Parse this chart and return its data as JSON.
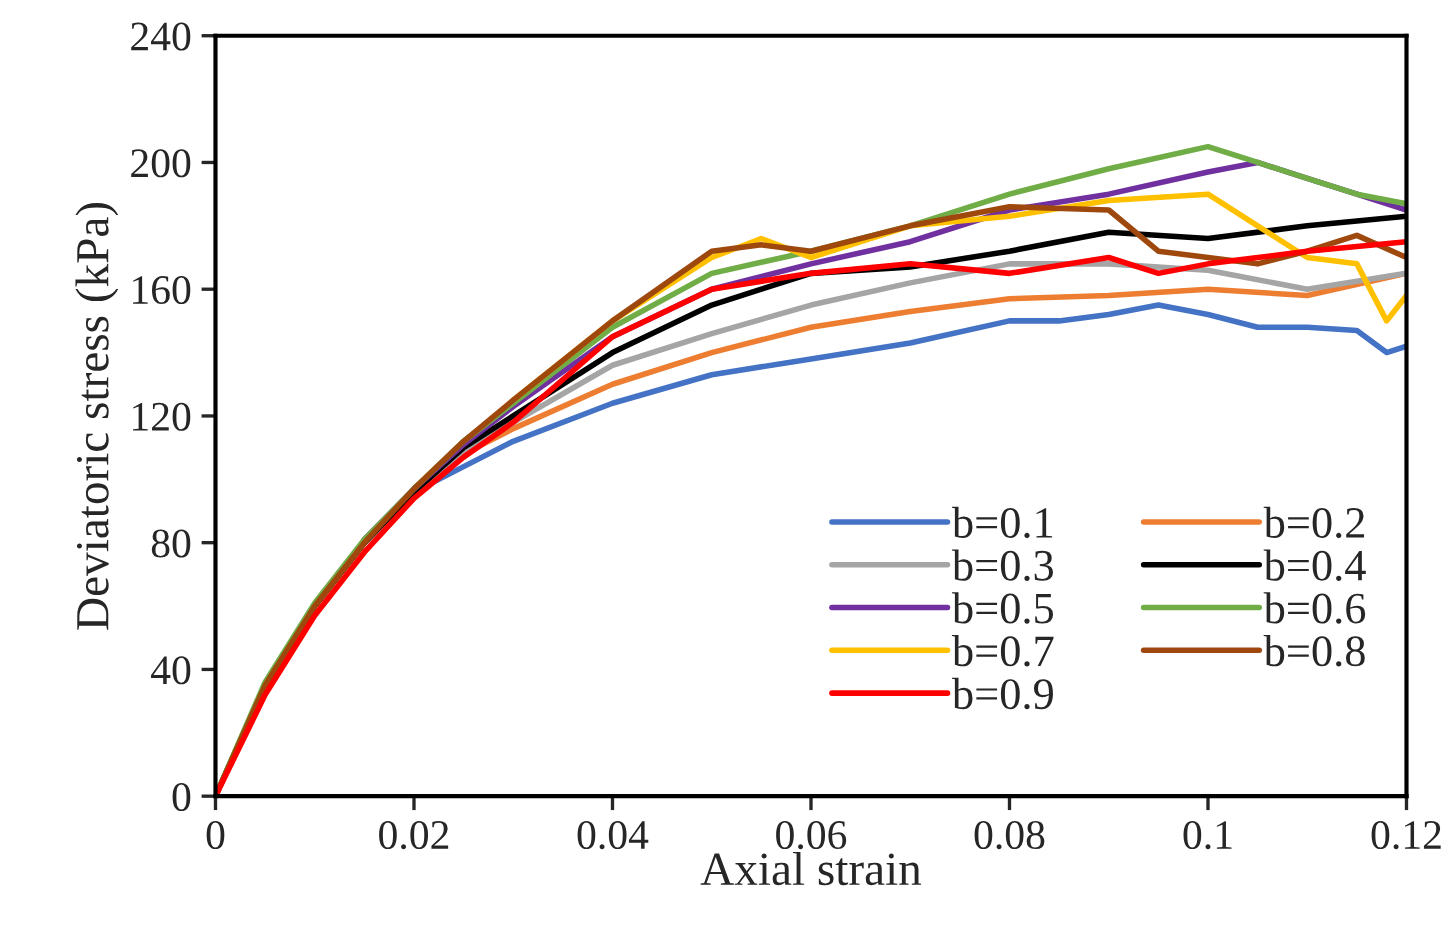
{
  "chart_data": {
    "type": "line",
    "xlabel": "Axial strain",
    "ylabel": "Deviatoric stress (kPa)",
    "xlim": [
      0,
      0.12
    ],
    "xticks": [
      {
        "value": 0,
        "label": "0"
      },
      0.02,
      0.04,
      0.06,
      0.08,
      0.1,
      0.12
    ],
    "ylim": [
      0,
      240
    ],
    "yticks": [
      0,
      40,
      80,
      120,
      160,
      200,
      240
    ],
    "grid": false,
    "legend": "bottom right",
    "marker": "none",
    "line_style": "solid",
    "series": [
      {
        "name": "b=0.1",
        "color": "#4472c4",
        "x": [
          0.015,
          0.02,
          0.025,
          0.03,
          0.04,
          0.05,
          0.06,
          0.07,
          0.08,
          0.085,
          0.09,
          0.095,
          0.1,
          0.105,
          0.11,
          0.115,
          0.118,
          0.12
        ],
        "values": [
          80,
          96,
          104,
          112,
          124,
          133,
          138,
          143,
          150,
          150,
          152,
          155,
          152,
          148,
          148,
          147,
          140,
          142
        ]
      },
      {
        "name": "b=0.2",
        "color": "#ed7d31",
        "x": [
          0,
          0.005,
          0.01,
          0.015,
          0.02,
          0.025,
          0.03,
          0.04,
          0.05,
          0.06,
          0.07,
          0.08,
          0.09,
          0.1,
          0.11,
          0.12
        ],
        "values": [
          0,
          35,
          60,
          80,
          96,
          108,
          116,
          130,
          140,
          148,
          153,
          157,
          158,
          160,
          158,
          165
        ]
      },
      {
        "name": "b=0.3",
        "color": "#a5a5a5",
        "x": [
          0,
          0.005,
          0.01,
          0.015,
          0.02,
          0.025,
          0.03,
          0.04,
          0.05,
          0.06,
          0.07,
          0.08,
          0.09,
          0.1,
          0.11,
          0.12
        ],
        "values": [
          0,
          35,
          60,
          80,
          96,
          108,
          118,
          136,
          146,
          155,
          162,
          168,
          168,
          166,
          160,
          165
        ]
      },
      {
        "name": "b=0.4",
        "color": "#000000",
        "x": [
          0,
          0.005,
          0.01,
          0.015,
          0.02,
          0.025,
          0.03,
          0.04,
          0.05,
          0.055,
          0.06,
          0.07,
          0.08,
          0.09,
          0.1,
          0.11,
          0.12
        ],
        "values": [
          0,
          35,
          60,
          80,
          96,
          110,
          120,
          140,
          155,
          160,
          165,
          167,
          172,
          178,
          176,
          180,
          183
        ]
      },
      {
        "name": "b=0.5",
        "color": "#7030a0",
        "x": [
          0.015,
          0.02,
          0.025,
          0.03,
          0.04,
          0.05,
          0.06,
          0.07,
          0.08,
          0.09,
          0.1,
          0.105,
          0.11,
          0.115,
          0.12
        ],
        "values": [
          81,
          97,
          111,
          123,
          145,
          160,
          168,
          175,
          185,
          190,
          197,
          200,
          195,
          190,
          185
        ]
      },
      {
        "name": "b=0.6",
        "color": "#70ad47",
        "x": [
          0,
          0.005,
          0.01,
          0.015,
          0.02,
          0.025,
          0.03,
          0.04,
          0.05,
          0.06,
          0.07,
          0.08,
          0.09,
          0.1,
          0.105,
          0.11,
          0.115,
          0.12
        ],
        "values": [
          0,
          36,
          61,
          81,
          97,
          112,
          124,
          148,
          165,
          172,
          180,
          190,
          198,
          205,
          200,
          195,
          190,
          187
        ]
      },
      {
        "name": "b=0.7",
        "color": "#ffc000",
        "x": [
          0.03,
          0.04,
          0.05,
          0.055,
          0.06,
          0.07,
          0.08,
          0.09,
          0.1,
          0.105,
          0.11,
          0.115,
          0.118,
          0.12
        ],
        "values": [
          125,
          150,
          170,
          176,
          170,
          180,
          183,
          188,
          190,
          180,
          170,
          168,
          150,
          158
        ]
      },
      {
        "name": "b=0.8",
        "color": "#9e480e",
        "x": [
          0,
          0.005,
          0.01,
          0.015,
          0.02,
          0.025,
          0.03,
          0.04,
          0.05,
          0.055,
          0.06,
          0.07,
          0.08,
          0.09,
          0.095,
          0.1,
          0.105,
          0.11,
          0.115,
          0.12
        ],
        "values": [
          0,
          35,
          60,
          80,
          97,
          112,
          125,
          150,
          172,
          174,
          172,
          180,
          186,
          185,
          172,
          170,
          168,
          172,
          177,
          170
        ]
      },
      {
        "name": "b=0.9",
        "color": "#ff0000",
        "x": [
          0,
          0.005,
          0.01,
          0.015,
          0.02,
          0.025,
          0.03,
          0.04,
          0.05,
          0.06,
          0.07,
          0.08,
          0.09,
          0.095,
          0.1,
          0.11,
          0.12
        ],
        "values": [
          0,
          32,
          57,
          77,
          94,
          107,
          118,
          145,
          160,
          165,
          168,
          165,
          170,
          165,
          168,
          172,
          175
        ]
      }
    ]
  }
}
